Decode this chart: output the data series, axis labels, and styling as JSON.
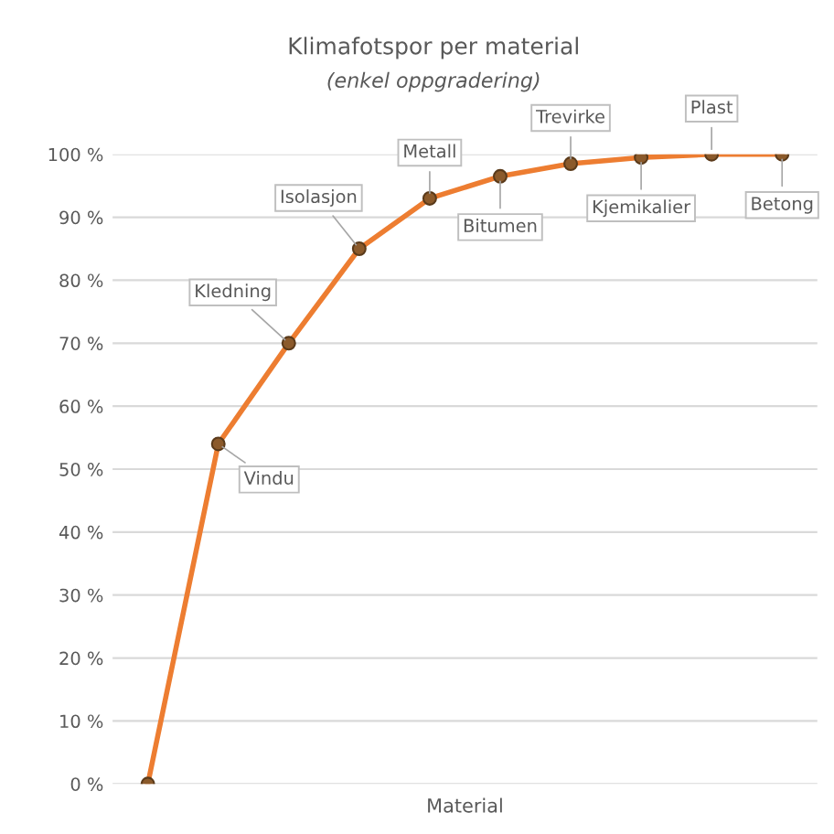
{
  "chart_data": {
    "type": "line",
    "title": "Klimafotspor per material",
    "subtitle": "(enkel oppgradering)",
    "xlabel": "Material",
    "categories": [
      null,
      null,
      null,
      null,
      null,
      null,
      null,
      null,
      null,
      null
    ],
    "series": [
      {
        "color": "#ed7d31",
        "values": [
          0,
          54,
          70,
          85,
          93,
          96.5,
          98.5,
          99.5,
          100,
          100
        ],
        "value_labels": [
          null,
          "Vindu",
          "Kledning",
          "Isolasjon",
          "Metall",
          "Bitumen",
          "Trevirke",
          "Kjemikalier",
          "Plast",
          "Betong"
        ]
      }
    ],
    "ylim": [
      0,
      100
    ],
    "yticks": [
      {
        "value": 0,
        "label": "0 %"
      },
      {
        "value": 10,
        "label": "10 %"
      },
      {
        "value": 20,
        "label": "20 %"
      },
      {
        "value": 30,
        "label": "30 %"
      },
      {
        "value": 40,
        "label": "40 %"
      },
      {
        "value": 50,
        "label": "50 %"
      },
      {
        "value": 60,
        "label": "60 %"
      },
      {
        "value": 70,
        "label": "70 %"
      },
      {
        "value": 80,
        "label": "80 %"
      },
      {
        "value": 90,
        "label": "90 %"
      },
      {
        "value": 100,
        "label": "100 %"
      }
    ],
    "grid": "y",
    "marker": "circle",
    "line_style": "solid"
  }
}
